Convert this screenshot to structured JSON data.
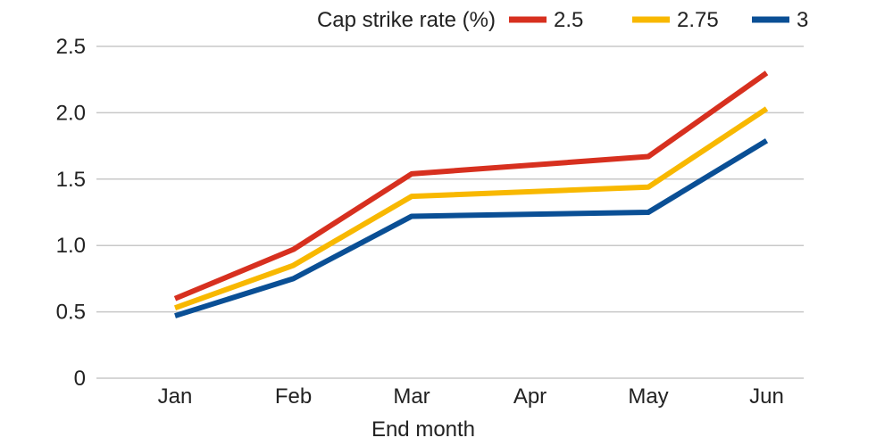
{
  "chart_data": {
    "type": "line",
    "categories": [
      "Jan",
      "Feb",
      "Mar",
      "Apr",
      "May",
      "Jun"
    ],
    "x": [
      0,
      1,
      2,
      4,
      5
    ],
    "series": [
      {
        "name": "2.5",
        "values": [
          0.6,
          0.97,
          1.54,
          1.67,
          2.3
        ],
        "color": "#d7301f"
      },
      {
        "name": "2.75",
        "values": [
          0.53,
          0.85,
          1.37,
          1.44,
          2.03
        ],
        "color": "#f8b800"
      },
      {
        "name": "3",
        "values": [
          0.47,
          0.75,
          1.22,
          1.25,
          1.79
        ],
        "color": "#0a4f95"
      }
    ],
    "yticks": [
      "0",
      "0.5",
      "1.0",
      "1.5",
      "2.0",
      "2.5"
    ],
    "ylim": [
      0,
      2.5
    ],
    "xlabel": "End month",
    "ylabel": "",
    "legend_title": "Cap strike rate (%)",
    "legend_position": "top-right",
    "grid": true
  }
}
